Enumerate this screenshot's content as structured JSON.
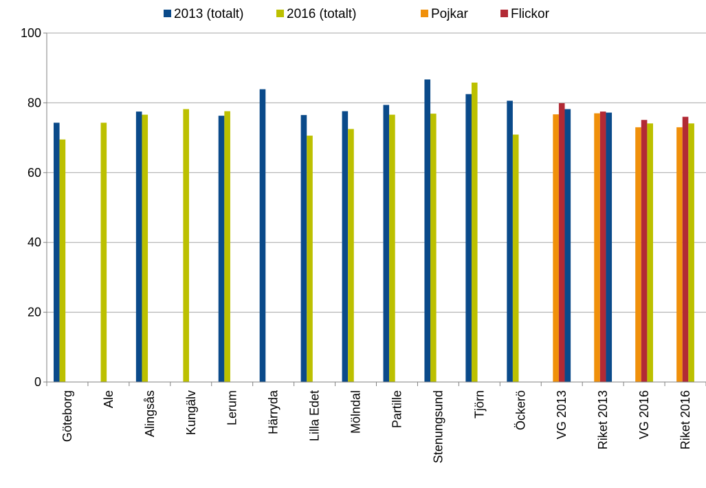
{
  "chart_data": {
    "type": "bar",
    "title": "",
    "xlabel": "",
    "ylabel": "",
    "ylim": [
      0,
      100
    ],
    "yticks": [
      0,
      20,
      40,
      60,
      80,
      100
    ],
    "grid": true,
    "legend_position": "top",
    "categories": [
      "Göteborg",
      "Ale",
      "Alingsås",
      "Kungälv",
      "Lerum",
      "Härryda",
      "Lilla Edet",
      "Mölndal",
      "Partille",
      "Stenungsund",
      "Tjörn",
      "Öckerö",
      "VG 2013",
      "Riket 2013",
      "VG 2016",
      "Riket 2016"
    ],
    "series": [
      {
        "name": "Pojkar",
        "color": "#f0900a",
        "slot": 0,
        "values": [
          null,
          null,
          null,
          null,
          null,
          null,
          null,
          null,
          null,
          null,
          null,
          null,
          76.7,
          77.0,
          73.0,
          73.0
        ]
      },
      {
        "name": "Flickor",
        "color": "#b22a35",
        "slot": 1,
        "values": [
          null,
          null,
          null,
          null,
          null,
          null,
          null,
          null,
          null,
          null,
          null,
          null,
          79.9,
          77.5,
          75.1,
          76.0
        ]
      },
      {
        "name": "2013 (totalt)",
        "color": "#0a4a8a",
        "slot": 2,
        "values": [
          74.3,
          null,
          77.5,
          null,
          76.3,
          83.9,
          76.5,
          77.6,
          79.4,
          86.7,
          82.5,
          80.6,
          78.2,
          77.2,
          null,
          null
        ]
      },
      {
        "name": "2016 (totalt)",
        "color": "#bcc000",
        "slot": 3,
        "values": [
          69.5,
          74.3,
          76.6,
          78.2,
          77.6,
          null,
          70.6,
          72.5,
          76.6,
          76.9,
          85.8,
          70.9,
          null,
          null,
          74.1,
          74.1
        ]
      }
    ],
    "legend_order": [
      "2013 (totalt)",
      "2016 (totalt)",
      "Pojkar",
      "Flickor"
    ]
  }
}
